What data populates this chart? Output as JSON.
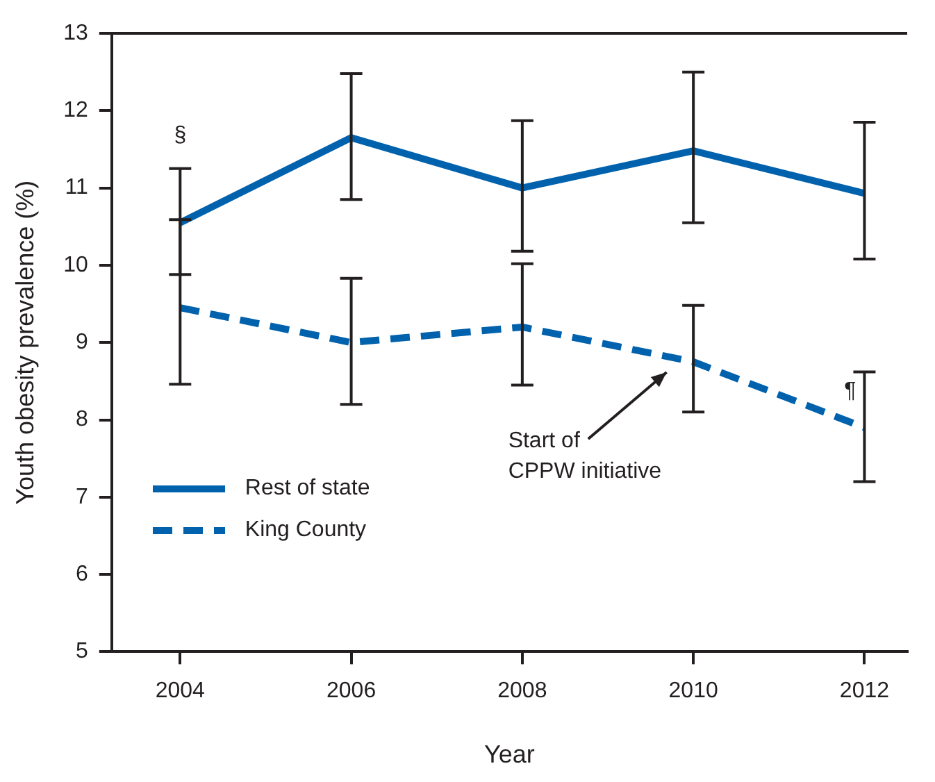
{
  "chart_data": {
    "type": "line",
    "xlabel": "Year",
    "ylabel": "Youth obesity prevalence (%)",
    "x": [
      2004,
      2006,
      2008,
      2010,
      2012
    ],
    "xlim": [
      2003.2,
      2012.5
    ],
    "xticks": [
      2004,
      2006,
      2008,
      2010,
      2012
    ],
    "ylim": [
      5,
      13
    ],
    "yticks": [
      5,
      6,
      7,
      8,
      9,
      10,
      11,
      12,
      13
    ],
    "grid": false,
    "legend": "bottom left",
    "marker": "none",
    "series": [
      {
        "name": "Rest of state",
        "color": "#0061ad",
        "line_style": "solid",
        "values": [
          10.55,
          11.65,
          11.0,
          11.48,
          10.93
        ],
        "errors": [
          [
            9.88,
            11.25
          ],
          [
            10.85,
            12.48
          ],
          [
            10.18,
            11.87
          ],
          [
            10.55,
            12.5
          ],
          [
            10.08,
            11.85
          ]
        ]
      },
      {
        "name": "King County",
        "color": "#0061ad",
        "line_style": "dashed",
        "values": [
          9.45,
          9.0,
          9.2,
          8.75,
          7.9
        ],
        "errors": [
          [
            8.46,
            10.59
          ],
          [
            8.2,
            9.83
          ],
          [
            8.45,
            10.02
          ],
          [
            8.1,
            9.48
          ],
          [
            7.2,
            8.62
          ]
        ]
      }
    ],
    "annotations": [
      {
        "text": "§",
        "x": 2004,
        "y": 11.25
      },
      "Start of CPPW initiative",
      {
        "text": "¶",
        "x": 2012,
        "y": 8.62
      }
    ]
  }
}
